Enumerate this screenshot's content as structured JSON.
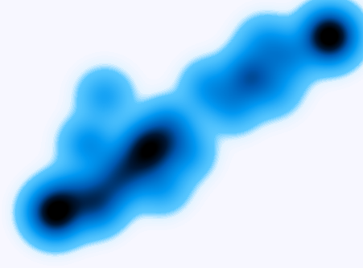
{
  "chart_data": {
    "type": "density",
    "x": [
      68,
      118,
      140,
      160,
      185,
      210,
      200,
      230,
      90,
      110,
      130,
      260,
      290,
      310,
      340,
      360,
      330,
      410
    ],
    "y": [
      69,
      79,
      104,
      124,
      149,
      174,
      104,
      144,
      94,
      154,
      214,
      224,
      204,
      239,
      224,
      264,
      279,
      289
    ],
    "values": [
      2.6,
      1.3,
      0.9,
      1.1,
      2.1,
      0.9,
      0.6,
      0.6,
      0.6,
      0.7,
      0.5,
      0.6,
      0.6,
      1.2,
      0.5,
      0.7,
      0.6,
      2.8
    ],
    "xlim": [
      0,
      451
    ],
    "ylim": [
      0,
      334
    ],
    "clim": [
      0,
      2.5
    ],
    "tick_labels": false
  }
}
